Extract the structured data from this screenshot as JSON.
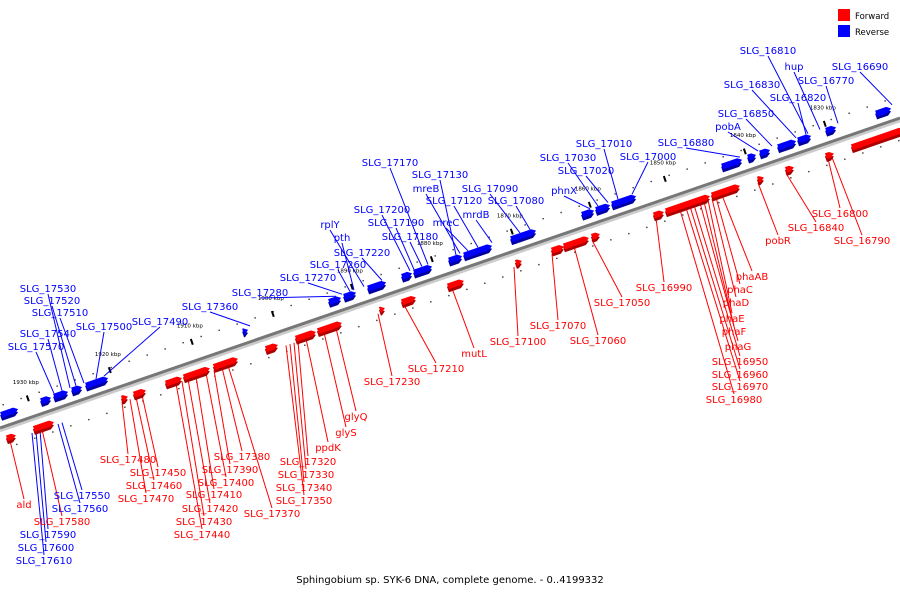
{
  "caption": "Sphingobium sp. SYK-6 DNA, complete genome. - 0..4199332",
  "legend": [
    {
      "label": "Forward",
      "color": "#ff0000"
    },
    {
      "label": "Reverse",
      "color": "#0000ff"
    }
  ],
  "colors": {
    "forward": "#ff0000",
    "reverse": "#0000ff",
    "axis": "#777777"
  },
  "kbp_labels": [
    "1830 kbp",
    "1840 kbp",
    "1850 kbp",
    "1860 kbp",
    "1870 kbp",
    "1880 kbp",
    "1890 kbp",
    "1900 kbp",
    "1910 kbp",
    "1920 kbp",
    "1930 kbp"
  ],
  "reverse_genes": [
    "SLG_16690",
    "SLG_16770",
    "hup",
    "SLG_16810",
    "SLG_16820",
    "SLG_16830",
    "SLG_16850",
    "pobA",
    "SLG_16880",
    "SLG_17000",
    "SLG_17010",
    "SLG_17020",
    "SLG_17030",
    "phnX",
    "SLG_17080",
    "SLG_17090",
    "mrdB",
    "SLG_17120",
    "mreC",
    "mreB",
    "SLG_17130",
    "SLG_17170",
    "SLG_17180",
    "SLG_17190",
    "SLG_17200",
    "SLG_17220",
    "rplY",
    "pth",
    "SLG_17260",
    "SLG_17270",
    "SLG_17280",
    "SLG_17360",
    "SLG_17490",
    "SLG_17500",
    "SLG_17510",
    "SLG_17520",
    "SLG_17530",
    "SLG_17540",
    "SLG_17570",
    "SLG_17550",
    "SLG_17560",
    "SLG_17590",
    "SLG_17600",
    "SLG_17610"
  ],
  "forward_genes": [
    "SLG_16790",
    "SLG_16800",
    "SLG_16840",
    "pobR",
    "phaAB",
    "phaC",
    "phaD",
    "phaE",
    "phaF",
    "phaG",
    "SLG_16950",
    "SLG_16960",
    "SLG_16970",
    "SLG_16980",
    "SLG_16990",
    "SLG_17050",
    "SLG_17060",
    "SLG_17070",
    "SLG_17100",
    "mutL",
    "SLG_17210",
    "SLG_17230",
    "glyQ",
    "glyS",
    "ppdK",
    "SLG_17320",
    "SLG_17330",
    "SLG_17340",
    "SLG_17350",
    "SLG_17370",
    "SLG_17380",
    "SLG_17390",
    "SLG_17400",
    "SLG_17410",
    "SLG_17420",
    "SLG_17430",
    "SLG_17440",
    "SLG_17450",
    "SLG_17460",
    "SLG_17470",
    "SLG_17480",
    "ald",
    "SLG_17580"
  ]
}
